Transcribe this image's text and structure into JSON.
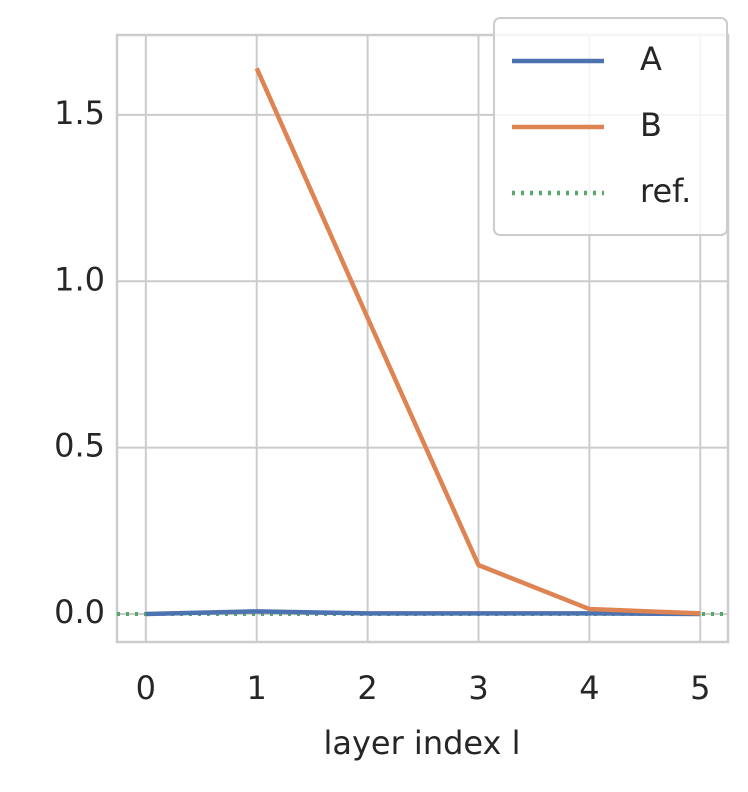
{
  "chart_data": {
    "type": "line",
    "x": [
      0,
      1,
      2,
      3,
      4,
      5
    ],
    "xlabel": "layer index l",
    "series": [
      {
        "name": "A",
        "color": "#4c72b0",
        "values": [
          0.0,
          0.008,
          0.002,
          0.002,
          0.002,
          0.0
        ]
      },
      {
        "name": "B",
        "color": "#dd8452",
        "values": [
          null,
          1.64,
          0.89,
          0.147,
          0.015,
          0.002
        ]
      }
    ],
    "reference_line": {
      "name": "ref.",
      "value": 0,
      "color": "#55a868"
    },
    "xlim": [
      -0.26,
      5.25
    ],
    "xticks": [
      0,
      1,
      2,
      3,
      4,
      5
    ],
    "ylim": [
      -0.084,
      1.74
    ],
    "yticks": [
      0.0,
      0.5,
      1.0,
      1.5
    ],
    "grid": true,
    "legend": "upper right"
  }
}
